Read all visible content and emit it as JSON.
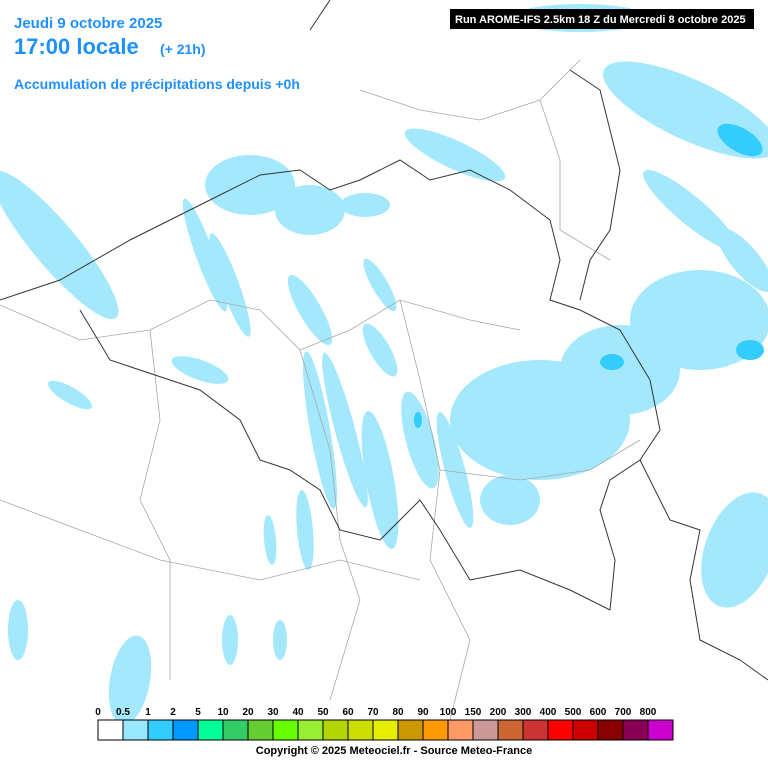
{
  "header": {
    "date": "Jeudi 9 octobre 2025",
    "time": "17:00 locale",
    "offset": "(+ 21h)",
    "subtitle": "Accumulation de précipitations depuis +0h",
    "run": "Run AROME-IFS 2.5km 18 Z du Mercredi 8 octobre 2025"
  },
  "legend": {
    "items": [
      {
        "label": "0",
        "color": "#ffffff"
      },
      {
        "label": "0.5",
        "color": "#99e6ff"
      },
      {
        "label": "1",
        "color": "#33ccff"
      },
      {
        "label": "2",
        "color": "#0099ff"
      },
      {
        "label": "5",
        "color": "#00ff99"
      },
      {
        "label": "10",
        "color": "#33cc66"
      },
      {
        "label": "20",
        "color": "#66cc33"
      },
      {
        "label": "30",
        "color": "#66ff00"
      },
      {
        "label": "40",
        "color": "#99ee33"
      },
      {
        "label": "50",
        "color": "#b3d600"
      },
      {
        "label": "60",
        "color": "#ccdd00"
      },
      {
        "label": "70",
        "color": "#e6ee00"
      },
      {
        "label": "80",
        "color": "#cc9900"
      },
      {
        "label": "90",
        "color": "#ff9900"
      },
      {
        "label": "100",
        "color": "#ff9966"
      },
      {
        "label": "150",
        "color": "#cc9999"
      },
      {
        "label": "200",
        "color": "#cc6633"
      },
      {
        "label": "300",
        "color": "#cc3333"
      },
      {
        "label": "400",
        "color": "#ff0000"
      },
      {
        "label": "500",
        "color": "#cc0000"
      },
      {
        "label": "600",
        "color": "#880000"
      },
      {
        "label": "700",
        "color": "#880055"
      },
      {
        "label": "800",
        "color": "#cc00cc"
      }
    ]
  },
  "footer": {
    "copyright": "Copyright © 2025 Meteociel.fr - Source Meteo-France"
  }
}
